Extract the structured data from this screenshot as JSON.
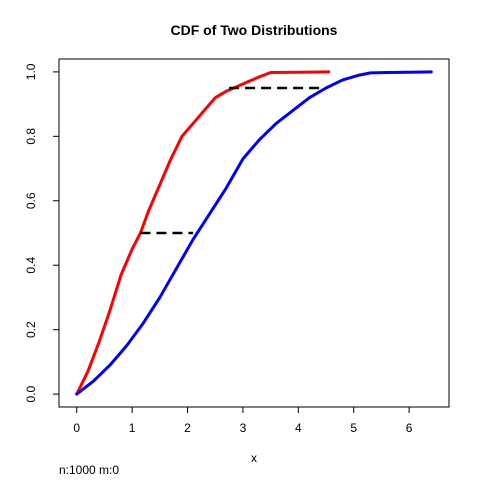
{
  "chart_data": {
    "type": "line",
    "title": "CDF of Two Distributions",
    "xlabel": "x",
    "ylabel": "",
    "subtitle": "n:1000 m:0",
    "xlim": [
      -0.32,
      6.72
    ],
    "ylim": [
      -0.04,
      1.04
    ],
    "x_ticks": [
      0,
      1,
      2,
      3,
      4,
      5,
      6
    ],
    "x_tick_labels": [
      "0",
      "1",
      "2",
      "3",
      "4",
      "5",
      "6"
    ],
    "y_ticks": [
      0.0,
      0.2,
      0.4,
      0.6,
      0.8,
      1.0
    ],
    "y_tick_labels": [
      "0.0",
      "0.2",
      "0.4",
      "0.6",
      "0.8",
      "1.0"
    ],
    "grid": false,
    "series": [
      {
        "color": "#ff0000",
        "x": [
          0,
          0.2,
          0.4,
          0.6,
          0.8,
          1.0,
          1.15,
          1.3,
          1.5,
          1.7,
          1.9,
          2.1,
          2.3,
          2.5,
          2.7,
          2.9,
          3.1,
          3.3,
          3.5,
          4.0,
          4.55
        ],
        "y": [
          0,
          0.07,
          0.16,
          0.26,
          0.37,
          0.45,
          0.5,
          0.57,
          0.65,
          0.73,
          0.8,
          0.84,
          0.88,
          0.92,
          0.94,
          0.955,
          0.97,
          0.985,
          0.998,
          0.999,
          1.0
        ]
      },
      {
        "color": "#0000ff",
        "x": [
          0,
          0.3,
          0.6,
          0.9,
          1.2,
          1.5,
          1.8,
          2.1,
          2.4,
          2.7,
          3.0,
          3.3,
          3.6,
          3.9,
          4.2,
          4.5,
          4.8,
          5.1,
          5.3,
          5.6,
          6.0,
          6.4
        ],
        "y": [
          0,
          0.04,
          0.09,
          0.15,
          0.22,
          0.3,
          0.39,
          0.48,
          0.56,
          0.64,
          0.73,
          0.79,
          0.84,
          0.88,
          0.92,
          0.95,
          0.975,
          0.99,
          0.997,
          0.998,
          0.999,
          1.0
        ]
      }
    ],
    "annotations": [
      {
        "type": "segment",
        "style": "dashed",
        "color": "#000000",
        "x": [
          1.15,
          2.1
        ],
        "y": [
          0.5,
          0.5
        ]
      },
      {
        "type": "segment",
        "style": "dashed",
        "color": "#000000",
        "x": [
          2.75,
          4.5
        ],
        "y": [
          0.95,
          0.95
        ]
      }
    ]
  }
}
